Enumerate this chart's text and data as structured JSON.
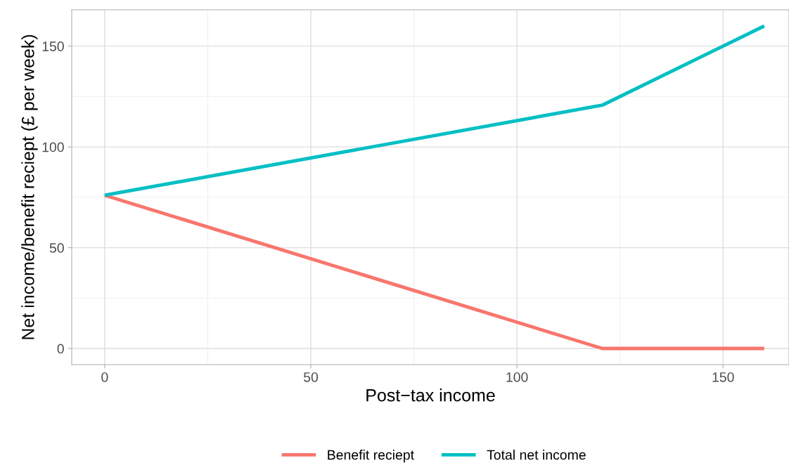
{
  "chart_data": {
    "type": "line",
    "xlabel": "Post−tax income",
    "ylabel": "Net income/benefit reciept (£ per week)",
    "series": [
      {
        "name": "Benefit reciept",
        "color": "#f8766d",
        "x": [
          0,
          120.7,
          160
        ],
        "values": [
          76,
          0,
          0
        ]
      },
      {
        "name": "Total net income",
        "color": "#00bfc4",
        "x": [
          0,
          120.7,
          160
        ],
        "values": [
          76,
          120.7,
          160
        ]
      }
    ],
    "xlim": [
      -8,
      166
    ],
    "xticks": [
      0,
      50,
      100,
      150
    ],
    "ylim": [
      -8,
      168
    ],
    "yticks": [
      0,
      50,
      100,
      150
    ],
    "grid": true,
    "legend": "bottom",
    "line_style": "solid",
    "marker": "none"
  }
}
